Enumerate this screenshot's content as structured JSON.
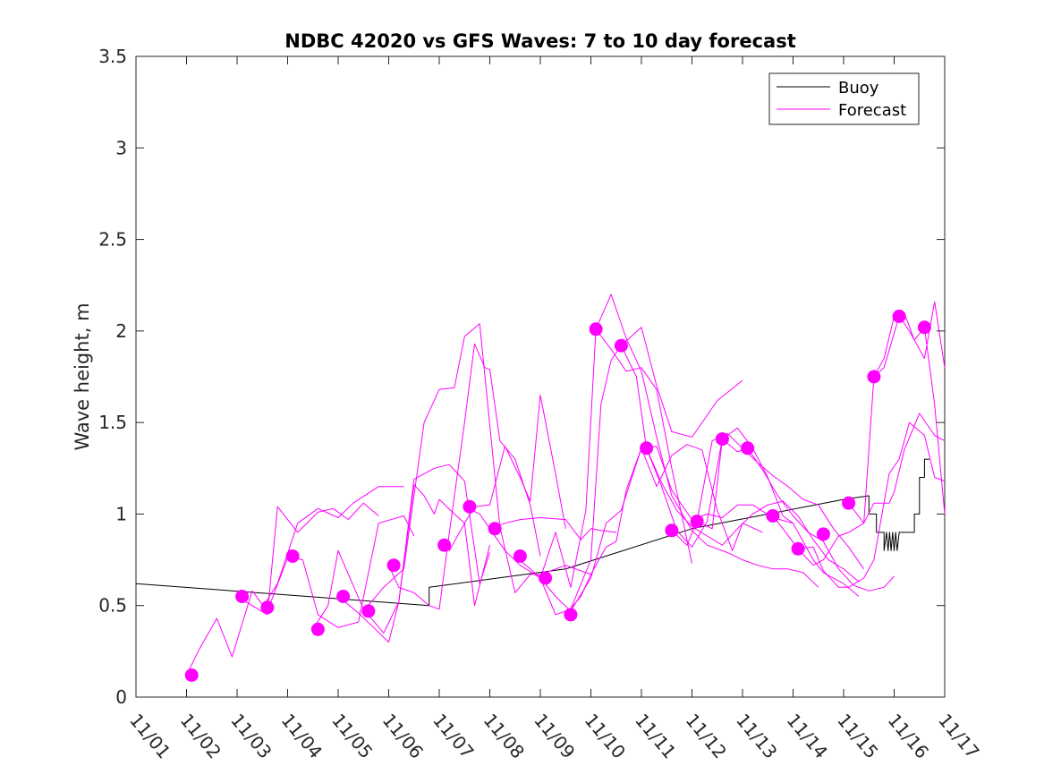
{
  "colors": {
    "buoy": "#000000",
    "forecast": "#ff00ff",
    "axis": "#262626"
  },
  "chart_data": {
    "type": "line",
    "title": "NDBC 42020 vs GFS Waves: 7 to 10 day forecast",
    "xlabel": "",
    "ylabel": "Wave height, m",
    "xlim": [
      0,
      16
    ],
    "ylim": [
      0,
      3.5
    ],
    "x_unit": "days since 11/01",
    "xticks": [
      0,
      1,
      2,
      3,
      4,
      5,
      6,
      7,
      8,
      9,
      10,
      11,
      12,
      13,
      14,
      15,
      16
    ],
    "xtick_labels": [
      "11/01",
      "11/02",
      "11/03",
      "11/04",
      "11/05",
      "11/06",
      "11/07",
      "11/08",
      "11/09",
      "11/10",
      "11/11",
      "11/12",
      "11/13",
      "11/14",
      "11/15",
      "11/16",
      "11/17"
    ],
    "yticks": [
      0,
      0.5,
      1,
      1.5,
      2,
      2.5,
      3,
      3.5
    ],
    "ytick_labels": [
      "0",
      "0.5",
      "1",
      "1.5",
      "2",
      "2.5",
      "3",
      "3.5"
    ],
    "legend": {
      "position": "top-right",
      "entries": [
        "Buoy",
        "Forecast"
      ]
    },
    "series": [
      {
        "name": "Buoy",
        "x": [
          0,
          5.8,
          5.8,
          8.5,
          11.0,
          14.0,
          14.5,
          14.5,
          14.65,
          14.65,
          14.8,
          14.8,
          14.85,
          14.88,
          14.91,
          14.94,
          14.97,
          15.0,
          15.03,
          15.06,
          15.1,
          15.1,
          15.3,
          15.4,
          15.4,
          15.5,
          15.5,
          15.6,
          15.6,
          15.7
        ],
        "y": [
          0.62,
          0.5,
          0.6,
          0.7,
          0.92,
          1.08,
          1.1,
          1.0,
          1.0,
          0.9,
          0.9,
          0.8,
          0.9,
          0.8,
          0.9,
          0.8,
          0.9,
          0.8,
          0.9,
          0.8,
          0.9,
          0.9,
          0.9,
          0.9,
          1.0,
          1.0,
          1.2,
          1.2,
          1.3,
          1.3
        ]
      },
      {
        "name": "Forecast run 1",
        "x": [
          1.0,
          1.25,
          1.6,
          1.9,
          2.3,
          2.6,
          3.0
        ],
        "y": [
          0.12,
          0.26,
          0.43,
          0.22,
          0.58,
          0.47,
          0.76
        ]
      },
      {
        "name": "Forecast run 2",
        "x": [
          2.0,
          2.3,
          2.6,
          2.8,
          3.2,
          3.6,
          3.9,
          4.2,
          4.5,
          4.8
        ],
        "y": [
          0.55,
          0.5,
          0.45,
          1.04,
          0.9,
          1.01,
          1.03,
          0.97,
          1.06,
          0.99
        ]
      },
      {
        "name": "Forecast run 3",
        "x": [
          2.5,
          2.8,
          3.2,
          3.6,
          4.0,
          4.3,
          4.8,
          5.3
        ],
        "y": [
          0.49,
          0.62,
          0.95,
          1.03,
          0.98,
          1.06,
          1.15,
          1.15
        ]
      },
      {
        "name": "Forecast run 4",
        "x": [
          3.0,
          3.3,
          3.6,
          4.0,
          4.4,
          4.8,
          5.3,
          5.5
        ],
        "y": [
          0.77,
          0.75,
          0.45,
          0.38,
          0.41,
          0.95,
          0.99,
          0.88
        ]
      },
      {
        "name": "Forecast run 5",
        "x": [
          3.5,
          3.8,
          4.0,
          4.5,
          4.9,
          5.2,
          5.5,
          5.7,
          5.9,
          6.0,
          6.3,
          6.5,
          6.7,
          7.0
        ],
        "y": [
          0.37,
          0.5,
          0.8,
          0.48,
          0.35,
          0.52,
          1.16,
          1.1,
          1.0,
          1.08,
          1.0,
          0.95,
          0.5,
          0.83
        ]
      },
      {
        "name": "Forecast run 6",
        "x": [
          4.0,
          4.4,
          4.7,
          5.0,
          5.2,
          5.5,
          5.9,
          6.2,
          6.5,
          6.8,
          7.0
        ],
        "y": [
          0.55,
          0.46,
          0.38,
          0.3,
          0.52,
          1.19,
          1.25,
          1.27,
          1.18,
          0.62,
          0.79
        ]
      },
      {
        "name": "Forecast run 7",
        "x": [
          4.5,
          4.9,
          5.3,
          5.7,
          6.0,
          6.3,
          6.5,
          6.8,
          7.2,
          7.5,
          7.8,
          8.0,
          8.3,
          8.5,
          8.7,
          9.0
        ],
        "y": [
          0.47,
          0.6,
          0.7,
          1.5,
          1.68,
          1.69,
          1.97,
          2.04,
          0.93,
          0.57,
          0.67,
          0.67,
          0.7,
          0.72,
          0.7,
          0.67
        ]
      },
      {
        "name": "Forecast run 8",
        "x": [
          5.0,
          5.2,
          5.5,
          5.8,
          6.0,
          6.2,
          6.5,
          6.7,
          6.9,
          7.0,
          7.2,
          7.5,
          7.8,
          8.0
        ],
        "y": [
          0.72,
          0.6,
          0.57,
          0.5,
          0.48,
          0.9,
          1.5,
          1.93,
          1.8,
          1.79,
          1.4,
          1.3,
          1.05,
          0.77
        ]
      },
      {
        "name": "Forecast run 9",
        "x": [
          6.0,
          6.2,
          6.5,
          6.7,
          7.0,
          7.3,
          7.6,
          7.8,
          8.0,
          8.3,
          8.5
        ],
        "y": [
          0.83,
          0.8,
          0.95,
          1.04,
          1.05,
          1.37,
          1.2,
          1.07,
          1.65,
          1.22,
          0.92
        ]
      },
      {
        "name": "Forecast run 10",
        "x": [
          6.5,
          6.8,
          7.0,
          7.3,
          7.6,
          8.0,
          8.5,
          8.8,
          9.0,
          9.2,
          9.5
        ],
        "y": [
          1.04,
          1.0,
          0.92,
          0.95,
          0.97,
          0.98,
          0.97,
          0.86,
          0.92,
          0.91,
          0.9
        ]
      },
      {
        "name": "Forecast run 11",
        "x": [
          7.0,
          7.3,
          7.6,
          8.0,
          8.3,
          8.6,
          9.0,
          9.2,
          9.4,
          9.6,
          10.0,
          10.3,
          10.6,
          11.0,
          11.5,
          12.0
        ],
        "y": [
          0.92,
          0.8,
          0.72,
          0.65,
          0.45,
          0.48,
          0.75,
          1.6,
          1.84,
          1.92,
          2.02,
          1.7,
          1.45,
          1.42,
          1.62,
          1.73
        ]
      },
      {
        "name": "Forecast run 12",
        "x": [
          7.5,
          7.8,
          8.0,
          8.3,
          8.6,
          8.9,
          9.1,
          9.4,
          9.7,
          10.0,
          10.3,
          10.6,
          11.0
        ],
        "y": [
          0.77,
          0.7,
          0.65,
          0.9,
          0.6,
          1.02,
          2.01,
          1.9,
          1.78,
          1.8,
          1.68,
          1.25,
          0.73
        ]
      },
      {
        "name": "Forecast run 13",
        "x": [
          8.0,
          8.3,
          8.6,
          9.0,
          9.3,
          9.6,
          10.0,
          10.3,
          10.6,
          10.9,
          11.2,
          11.5,
          11.8,
          12.0,
          12.4
        ],
        "y": [
          0.65,
          0.55,
          0.47,
          0.65,
          0.95,
          1.02,
          1.36,
          1.15,
          1.32,
          1.38,
          1.35,
          1.02,
          0.8,
          0.95,
          0.9
        ]
      },
      {
        "name": "Forecast run 14",
        "x": [
          8.5,
          8.8,
          9.0,
          9.3,
          9.5,
          9.7,
          10.0,
          10.3,
          10.6,
          11.0,
          11.3,
          11.6,
          11.9,
          12.2,
          12.6,
          13.0
        ],
        "y": [
          0.45,
          0.55,
          0.67,
          0.82,
          0.85,
          1.13,
          1.36,
          1.37,
          1.13,
          0.97,
          1.0,
          0.98,
          1.05,
          1.05,
          0.98,
          0.95
        ]
      },
      {
        "name": "Forecast run 15",
        "x": [
          9.1,
          9.4,
          9.7,
          10.0,
          10.3,
          10.6,
          11.0,
          11.3,
          11.7,
          12.0,
          12.3,
          12.6,
          12.9,
          13.2,
          13.5
        ],
        "y": [
          2.01,
          2.2,
          1.96,
          1.78,
          1.42,
          1.1,
          0.91,
          0.83,
          0.79,
          0.75,
          0.72,
          0.7,
          0.7,
          0.68,
          0.6
        ]
      },
      {
        "name": "Forecast run 16",
        "x": [
          9.6,
          9.9,
          10.1,
          10.4,
          10.7,
          11.0,
          11.3,
          11.6,
          11.9,
          12.2,
          12.5,
          12.8,
          13.0,
          13.4,
          13.6,
          14.0,
          14.3
        ],
        "y": [
          1.92,
          1.75,
          1.36,
          1.15,
          0.91,
          0.82,
          0.96,
          1.41,
          1.47,
          1.36,
          1.2,
          0.99,
          0.95,
          0.75,
          0.68,
          0.62,
          0.55
        ]
      },
      {
        "name": "Forecast run 17",
        "x": [
          10.1,
          10.4,
          10.7,
          11.0,
          11.3,
          11.6,
          11.9,
          12.2,
          12.5,
          12.8,
          13.1,
          13.4,
          13.7,
          14.0,
          14.3
        ],
        "y": [
          1.36,
          1.17,
          1.02,
          0.93,
          0.88,
          0.83,
          0.92,
          1.0,
          1.05,
          1.07,
          0.99,
          0.86,
          0.75,
          0.7,
          0.63
        ]
      },
      {
        "name": "Forecast run 18",
        "x": [
          10.6,
          10.9,
          11.1,
          11.4,
          11.7,
          12.0,
          12.3,
          12.6,
          12.9,
          13.2,
          13.5,
          13.8,
          14.1,
          14.4
        ],
        "y": [
          0.91,
          0.83,
          0.96,
          1.4,
          1.44,
          1.36,
          1.28,
          1.21,
          1.15,
          1.08,
          1.05,
          0.92,
          0.82,
          0.7
        ]
      },
      {
        "name": "Forecast run 19",
        "x": [
          11.1,
          11.4,
          11.6,
          11.9,
          12.1,
          12.4,
          12.7,
          13.0,
          13.3,
          13.6,
          13.9,
          14.2,
          14.5,
          14.8,
          15.0
        ],
        "y": [
          0.96,
          0.92,
          1.41,
          1.34,
          1.36,
          1.24,
          1.1,
          0.99,
          0.9,
          0.85,
          0.7,
          0.61,
          0.58,
          0.6,
          0.66
        ]
      },
      {
        "name": "Forecast run 20",
        "x": [
          12.6,
          12.8,
          13.1,
          13.4,
          13.6,
          13.9,
          14.1,
          14.4,
          14.6,
          14.9,
          15.0,
          15.2,
          15.5,
          15.8,
          16.0
        ],
        "y": [
          0.99,
          0.92,
          0.81,
          0.72,
          0.75,
          0.88,
          0.9,
          0.95,
          1.06,
          1.06,
          1.12,
          1.35,
          1.55,
          1.43,
          1.4
        ]
      },
      {
        "name": "Forecast run 21",
        "x": [
          13.1,
          13.4,
          13.6,
          13.9,
          14.1,
          14.4,
          14.6,
          14.9,
          15.1,
          15.3,
          15.6,
          15.8,
          16.0
        ],
        "y": [
          0.81,
          0.82,
          0.69,
          0.6,
          0.6,
          0.65,
          0.75,
          1.22,
          1.3,
          1.5,
          1.43,
          1.2,
          1.18
        ]
      },
      {
        "name": "Forecast run 22",
        "x": [
          14.1,
          14.4,
          14.6,
          14.8,
          15.1,
          15.3,
          15.6,
          15.8,
          16.0
        ],
        "y": [
          1.06,
          0.95,
          1.75,
          1.8,
          2.08,
          2.0,
          1.85,
          2.16,
          1.8
        ]
      },
      {
        "name": "Forecast run 23",
        "x": [
          14.6,
          14.8,
          15.0,
          15.2,
          15.4,
          15.6,
          15.8,
          16.0
        ],
        "y": [
          1.75,
          1.85,
          2.08,
          2.1,
          1.95,
          2.02,
          1.6,
          1.0
        ]
      }
    ],
    "markers": {
      "name": "Forecast issue points",
      "x": [
        1.1,
        2.1,
        2.6,
        3.1,
        3.6,
        4.1,
        4.6,
        5.1,
        6.1,
        6.6,
        7.1,
        7.6,
        8.1,
        8.6,
        9.1,
        9.6,
        10.1,
        10.6,
        11.1,
        11.6,
        12.1,
        12.6,
        13.1,
        13.6,
        14.1,
        14.6,
        15.1,
        15.6
      ],
      "y": [
        0.12,
        0.55,
        0.49,
        0.77,
        0.37,
        0.55,
        0.47,
        0.72,
        0.83,
        1.04,
        0.92,
        0.77,
        0.65,
        0.45,
        2.01,
        1.92,
        1.36,
        0.91,
        0.96,
        1.41,
        1.36,
        0.99,
        0.81,
        0.89,
        1.06,
        1.75,
        2.08,
        2.02
      ]
    }
  }
}
